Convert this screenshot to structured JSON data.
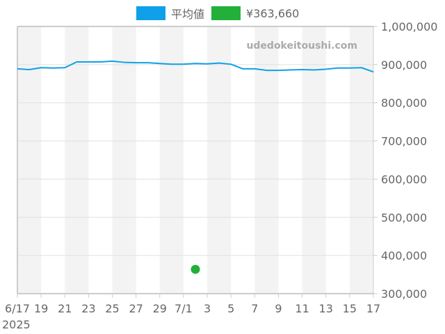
{
  "legend": {
    "items": [
      {
        "label": "平均値",
        "color": "#0ea0e8"
      },
      {
        "label": "¥363,660",
        "color": "#22b03a"
      }
    ]
  },
  "watermark": "udedokeitoushi.com",
  "colors": {
    "line": "#0ea0e8",
    "point": "#22b03a",
    "stripe": "#f3f3f3",
    "grid": "#e0e0e0",
    "border": "#cccccc",
    "text": "#666666"
  },
  "chart_data": {
    "type": "line",
    "title": "",
    "xlabel": "",
    "ylabel": "",
    "year_label": "2025",
    "x": [
      "6/17",
      "6/18",
      "6/19",
      "6/20",
      "6/21",
      "6/22",
      "6/23",
      "6/24",
      "6/25",
      "6/26",
      "6/27",
      "6/28",
      "6/29",
      "6/30",
      "7/1",
      "7/2",
      "7/3",
      "7/4",
      "7/5",
      "7/6",
      "7/7",
      "7/8",
      "7/9",
      "7/10",
      "7/11",
      "7/12",
      "7/13",
      "7/14",
      "7/15",
      "7/16",
      "7/17"
    ],
    "x_tick_labels": [
      "6/17",
      "19",
      "21",
      "23",
      "25",
      "27",
      "29",
      "7/1",
      "3",
      "5",
      "7",
      "9",
      "11",
      "13",
      "15",
      "17"
    ],
    "y_tick_labels": [
      "1,000,000",
      "900,000",
      "800,000",
      "700,000",
      "600,000",
      "500,000",
      "400,000",
      "300,000"
    ],
    "ylim": [
      300000,
      1000000
    ],
    "grid": true,
    "legend_position": "top",
    "series": [
      {
        "name": "平均値",
        "type": "line",
        "values": [
          889000,
          887000,
          892000,
          891000,
          892000,
          907000,
          907000,
          907000,
          909000,
          906000,
          905000,
          905000,
          903000,
          901000,
          901000,
          903000,
          902000,
          904000,
          901000,
          889000,
          889000,
          885000,
          885000,
          886000,
          887000,
          886000,
          888000,
          891000,
          891000,
          892000,
          881000
        ]
      },
      {
        "name": "¥363,660",
        "type": "scatter",
        "points": [
          {
            "x": "7/2",
            "y": 363660
          }
        ]
      }
    ]
  }
}
